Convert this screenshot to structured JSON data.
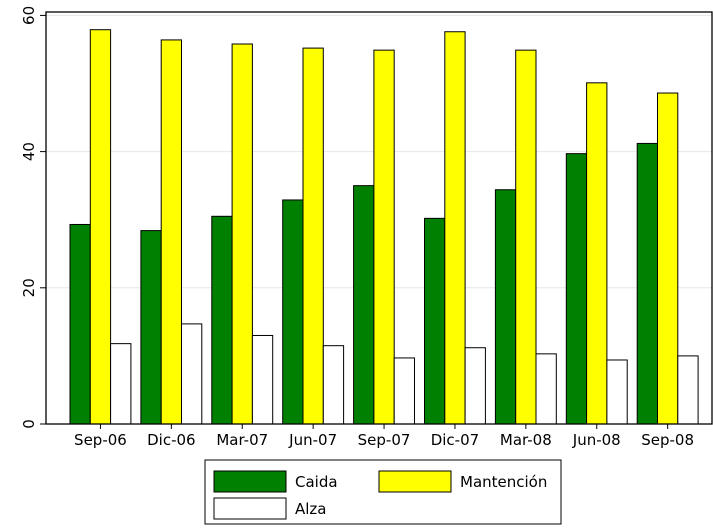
{
  "chart_data": {
    "type": "bar",
    "categories": [
      "Sep-06",
      "Dic-06",
      "Mar-07",
      "Jun-07",
      "Sep-07",
      "Dic-07",
      "Mar-08",
      "Jun-08",
      "Sep-08"
    ],
    "series": [
      {
        "name": "Caida",
        "values": [
          29.3,
          28.4,
          30.5,
          32.9,
          35.0,
          30.2,
          34.4,
          39.7,
          41.2
        ],
        "color": "#008000"
      },
      {
        "name": "Mantención",
        "values": [
          57.9,
          56.4,
          55.8,
          55.2,
          54.9,
          57.6,
          54.9,
          50.1,
          48.6
        ],
        "color": "#ffff00"
      },
      {
        "name": "Alza",
        "values": [
          11.8,
          14.7,
          13.0,
          11.5,
          9.7,
          11.2,
          10.3,
          9.4,
          10.0
        ],
        "color": "#ffffff"
      }
    ],
    "yticks": [
      "0",
      "20",
      "40",
      "60"
    ],
    "ylim": [
      0,
      60.5
    ],
    "grid": true,
    "legend_position": "bottom",
    "title": "",
    "xlabel": "",
    "ylabel": ""
  }
}
